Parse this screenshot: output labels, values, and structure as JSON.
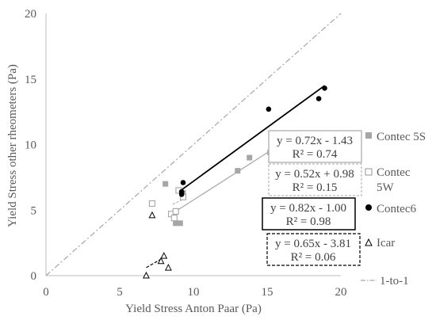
{
  "chart_data": {
    "type": "scatter",
    "title": "",
    "xlabel": "Yield Stress Anton Paar (Pa)",
    "ylabel": "Yield Stress other rheometers (Pa)",
    "xlim": [
      0,
      20
    ],
    "ylim": [
      0,
      20
    ],
    "xticks": [
      0,
      5,
      10,
      15,
      20
    ],
    "yticks": [
      0,
      5,
      10,
      15,
      20
    ],
    "grid": false,
    "legend_position": "right",
    "series": [
      {
        "name": "Contec 5S",
        "marker": "square-filled",
        "color": "#a6a6a6",
        "points": [
          [
            8.1,
            7.0
          ],
          [
            8.8,
            4.0
          ],
          [
            9.1,
            4.0
          ],
          [
            9.0,
            6.5
          ],
          [
            9.3,
            6.3
          ],
          [
            13.0,
            8.0
          ],
          [
            13.8,
            9.0
          ],
          [
            15.2,
            9.4
          ]
        ],
        "trendline": {
          "equation": "y = 0.72x - 1.43",
          "r2": "R² = 0.74",
          "slope": 0.72,
          "intercept": -1.43,
          "x_range": [
            8.8,
            15.2
          ]
        }
      },
      {
        "name": "Contec 5W",
        "marker": "square-open",
        "color": "#a6a6a6",
        "points": [
          [
            7.2,
            5.5
          ],
          [
            8.5,
            4.7
          ],
          [
            8.8,
            4.9
          ],
          [
            8.7,
            4.4
          ],
          [
            9.0,
            6.5
          ],
          [
            9.3,
            6.0
          ]
        ],
        "trendline": {
          "equation": "y = 0.52x + 0.98",
          "r2": "R² = 0.15",
          "slope": 0.52,
          "intercept": 0.98,
          "x_range": [
            8.6,
            9.3
          ]
        }
      },
      {
        "name": "Contec6",
        "marker": "circle-filled",
        "color": "#000000",
        "points": [
          [
            9.2,
            6.2
          ],
          [
            9.2,
            6.4
          ],
          [
            9.3,
            7.1
          ],
          [
            15.1,
            12.7
          ],
          [
            18.5,
            13.5
          ],
          [
            18.9,
            14.3
          ]
        ],
        "trendline": {
          "equation": "y = 0.82x - 1.00",
          "r2": "R² = 0.98",
          "slope": 0.82,
          "intercept": -1.0,
          "x_range": [
            9.2,
            18.9
          ]
        }
      },
      {
        "name": "Icar",
        "marker": "triangle-open",
        "color": "#000000",
        "points": [
          [
            6.8,
            0.0
          ],
          [
            7.2,
            4.6
          ],
          [
            7.8,
            1.1
          ],
          [
            8.0,
            1.5
          ],
          [
            8.3,
            0.6
          ]
        ],
        "trendline": {
          "equation": "y = 0.65x - 3.81",
          "r2": "R² = 0.06",
          "slope": 0.65,
          "intercept": -3.81,
          "x_range": [
            6.8,
            8.0
          ]
        }
      },
      {
        "name": "1-to-1",
        "marker": "none",
        "line_style": "dash-dot",
        "color": "#a6a6a6",
        "line": [
          [
            0,
            0
          ],
          [
            20,
            20
          ]
        ]
      }
    ]
  }
}
